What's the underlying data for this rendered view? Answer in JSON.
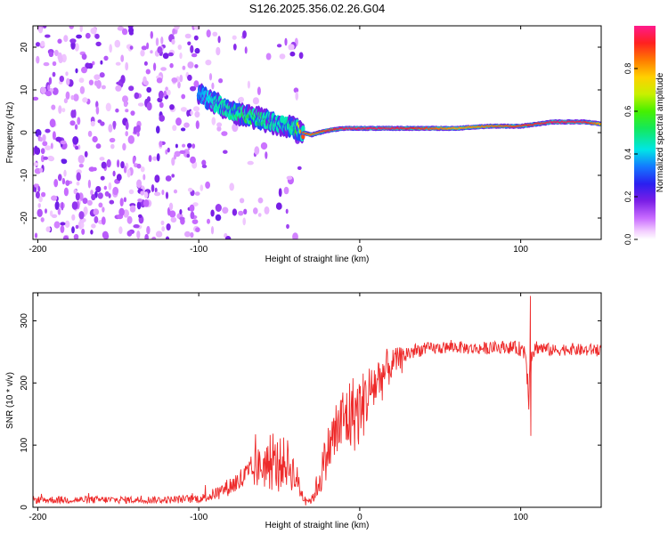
{
  "title": "S126.2025.356.02.26.G04",
  "colors": {
    "snr_line": "#ee2a2a",
    "axis": "#000000"
  },
  "chart_data": [
    {
      "type": "heatmap",
      "name": "spectrogram",
      "xlabel": "Height of straight line (km)",
      "ylabel": "Frequency (Hz)",
      "xlim": [
        -203,
        150
      ],
      "ylim": [
        -25,
        25
      ],
      "xticks": [
        -200,
        -100,
        0,
        100
      ],
      "yticks": [
        -20,
        -10,
        0,
        10,
        20
      ],
      "colorbar": {
        "label": "Normalized spectral amplitude",
        "range": [
          0.0,
          1.0
        ],
        "ticks": [
          "0.0",
          "0.2",
          "0.4",
          "0.6",
          "0.8"
        ]
      },
      "ridge": {
        "x": [
          -100,
          -90,
          -80,
          -70,
          -60,
          -50,
          -40,
          -35,
          -30,
          -20,
          -10,
          0,
          20,
          40,
          60,
          80,
          100,
          120,
          140,
          150
        ],
        "freq": [
          9,
          7,
          5,
          4,
          3,
          2,
          1,
          0,
          -0.5,
          0.5,
          1,
          1,
          1,
          1,
          1,
          1.5,
          1.5,
          2.5,
          2.5,
          2
        ],
        "amplitude": [
          0.35,
          0.45,
          0.5,
          0.55,
          0.5,
          0.45,
          0.5,
          0.9,
          0.85,
          0.9,
          0.95,
          0.95,
          0.95,
          0.9,
          0.8,
          0.85,
          0.9,
          0.95,
          0.95,
          0.8
        ]
      }
    },
    {
      "type": "line",
      "name": "snr",
      "xlabel": "Height of straight line (km)",
      "ylabel": "SNR (10 * v/v)",
      "xlim": [
        -203,
        150
      ],
      "ylim": [
        0,
        345
      ],
      "xticks": [
        -200,
        -100,
        0,
        100
      ],
      "yticks": [
        0,
        100,
        200,
        300
      ],
      "series": [
        {
          "name": "SNR",
          "x": [
            -203,
            -180,
            -160,
            -140,
            -120,
            -100,
            -95,
            -90,
            -85,
            -80,
            -75,
            -70,
            -65,
            -60,
            -55,
            -50,
            -45,
            -40,
            -35,
            -30,
            -25,
            -20,
            -15,
            -10,
            -5,
            0,
            5,
            10,
            15,
            20,
            25,
            30,
            35,
            40,
            50,
            60,
            70,
            80,
            90,
            100,
            103,
            105,
            107,
            110,
            120,
            130,
            140,
            150
          ],
          "y": [
            12,
            12,
            12,
            12,
            12,
            14,
            16,
            22,
            28,
            35,
            42,
            50,
            60,
            68,
            65,
            72,
            72,
            50,
            15,
            10,
            45,
            90,
            120,
            140,
            150,
            155,
            180,
            200,
            215,
            230,
            240,
            248,
            252,
            255,
            256,
            258,
            255,
            256,
            258,
            255,
            250,
            195,
            250,
            258,
            252,
            255,
            252,
            255
          ],
          "amp": [
            6,
            6,
            6,
            6,
            6,
            7,
            8,
            10,
            12,
            16,
            20,
            25,
            30,
            38,
            40,
            42,
            40,
            30,
            8,
            5,
            30,
            40,
            55,
            60,
            65,
            60,
            50,
            45,
            40,
            25,
            18,
            14,
            12,
            10,
            10,
            10,
            10,
            10,
            10,
            12,
            18,
            40,
            18,
            12,
            10,
            10,
            10,
            10
          ]
        }
      ],
      "annotations": [
        {
          "x": 106,
          "y": 340,
          "text": ""
        },
        {
          "x": 106,
          "y": 115,
          "text": ""
        }
      ]
    }
  ]
}
